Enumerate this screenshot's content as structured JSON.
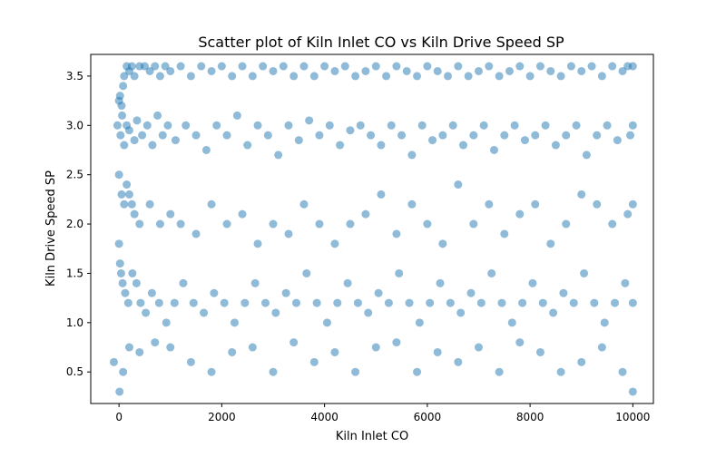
{
  "chart_data": {
    "type": "scatter",
    "title": "Scatter plot of Kiln Inlet CO vs Kiln Drive Speed SP",
    "xlabel": "Kiln Inlet CO",
    "ylabel": "Kiln Drive Speed SP",
    "xlim": [
      -550,
      10400
    ],
    "ylim": [
      0.18,
      3.72
    ],
    "xticks": [
      0,
      2000,
      4000,
      6000,
      8000,
      10000
    ],
    "xtick_labels": [
      "0",
      "2000",
      "4000",
      "6000",
      "8000",
      "10000"
    ],
    "yticks": [
      0.5,
      1.0,
      1.5,
      2.0,
      2.5,
      3.0,
      3.5
    ],
    "ytick_labels": [
      "0.5",
      "1.0",
      "1.5",
      "2.0",
      "2.5",
      "3.0",
      "3.5"
    ],
    "grid": false,
    "legend": "none",
    "marker_color": "#1f77b4",
    "marker_alpha": 0.5,
    "series": [
      {
        "x": [
          0,
          20,
          50,
          80,
          100,
          150,
          200,
          250,
          300,
          400,
          500,
          600,
          700,
          800,
          900,
          1000,
          1200,
          1400,
          1600,
          1800,
          2000,
          2200,
          2400,
          2600,
          2800,
          3000,
          3200,
          3400,
          3600,
          3800,
          4000,
          4200,
          4400,
          4600,
          4800,
          5000,
          5200,
          5400,
          5600,
          5800,
          6000,
          6200,
          6400,
          6600,
          6800,
          7000,
          7200,
          7400,
          7600,
          7800,
          8000,
          8200,
          8400,
          8600,
          8800,
          9000,
          9200,
          9400,
          9600,
          9800,
          9900,
          10000,
          -30,
          30,
          60,
          100,
          150,
          200,
          300,
          350,
          450,
          550,
          650,
          750,
          850,
          950,
          1100,
          1300,
          1500,
          1700,
          1900,
          2100,
          2300,
          2500,
          2700,
          2900,
          3100,
          3300,
          3500,
          3700,
          3900,
          4100,
          4300,
          4500,
          4700,
          4900,
          5100,
          5300,
          5500,
          5700,
          5900,
          6100,
          6300,
          6500,
          6700,
          6900,
          7100,
          7300,
          7500,
          7700,
          7900,
          8100,
          8300,
          8500,
          8700,
          8900,
          9100,
          9300,
          9500,
          9700,
          9950,
          10000,
          0,
          50,
          100,
          150,
          200,
          250,
          300,
          400,
          600,
          800,
          1000,
          1200,
          1500,
          1800,
          2100,
          2400,
          2700,
          3000,
          3300,
          3600,
          3900,
          4200,
          4500,
          4800,
          5100,
          5400,
          5700,
          6000,
          6300,
          6600,
          6900,
          7200,
          7500,
          7800,
          8100,
          8400,
          8700,
          9000,
          9300,
          9600,
          9900,
          10000,
          0,
          20,
          40,
          70,
          120,
          180,
          260,
          340,
          420,
          520,
          640,
          780,
          920,
          1080,
          1250,
          1450,
          1650,
          1850,
          2050,
          2250,
          2450,
          2650,
          2850,
          3050,
          3250,
          3450,
          3650,
          3850,
          4050,
          4250,
          4450,
          4650,
          4850,
          5050,
          5250,
          5450,
          5650,
          5850,
          6050,
          6250,
          6450,
          6650,
          6850,
          7050,
          7250,
          7450,
          7650,
          7850,
          8050,
          8250,
          8450,
          8650,
          8850,
          9050,
          9250,
          9450,
          9650,
          9850,
          10000,
          -100,
          10,
          80,
          200,
          400,
          700,
          1000,
          1400,
          1800,
          2200,
          2600,
          3000,
          3400,
          3800,
          4200,
          4600,
          5000,
          5400,
          5800,
          6200,
          6600,
          7000,
          7400,
          7800,
          8200,
          8600,
          9000,
          9400,
          9800,
          10000
        ],
        "y": [
          3.25,
          3.3,
          3.2,
          3.4,
          3.5,
          3.6,
          3.55,
          3.6,
          3.5,
          3.6,
          3.6,
          3.55,
          3.6,
          3.5,
          3.6,
          3.55,
          3.6,
          3.5,
          3.6,
          3.55,
          3.6,
          3.5,
          3.6,
          3.5,
          3.6,
          3.55,
          3.6,
          3.5,
          3.6,
          3.5,
          3.6,
          3.55,
          3.6,
          3.5,
          3.55,
          3.6,
          3.5,
          3.6,
          3.55,
          3.5,
          3.6,
          3.55,
          3.5,
          3.6,
          3.5,
          3.55,
          3.6,
          3.5,
          3.55,
          3.6,
          3.5,
          3.6,
          3.55,
          3.5,
          3.6,
          3.55,
          3.6,
          3.5,
          3.6,
          3.55,
          3.6,
          3.6,
          3.0,
          2.9,
          3.1,
          2.8,
          3.0,
          2.95,
          2.85,
          3.05,
          2.9,
          3.0,
          2.8,
          3.1,
          2.9,
          3.0,
          2.85,
          3.0,
          2.9,
          2.75,
          3.0,
          2.9,
          3.1,
          2.8,
          3.0,
          2.9,
          2.7,
          3.0,
          2.85,
          3.05,
          2.9,
          3.0,
          2.8,
          2.95,
          3.0,
          2.9,
          2.8,
          3.0,
          2.9,
          2.7,
          3.0,
          2.85,
          2.9,
          3.0,
          2.8,
          2.9,
          3.0,
          2.75,
          2.9,
          3.0,
          2.85,
          2.9,
          3.0,
          2.8,
          2.9,
          3.0,
          2.7,
          2.9,
          3.0,
          2.85,
          2.9,
          3.0,
          2.5,
          2.3,
          2.2,
          2.4,
          2.3,
          2.2,
          2.1,
          2.0,
          2.2,
          2.0,
          2.1,
          2.0,
          1.9,
          2.2,
          2.0,
          2.1,
          1.8,
          2.0,
          1.9,
          2.2,
          2.0,
          1.8,
          2.0,
          2.1,
          2.3,
          1.9,
          2.2,
          2.0,
          1.8,
          2.4,
          2.0,
          2.2,
          1.9,
          2.1,
          2.2,
          1.8,
          2.0,
          2.3,
          2.2,
          2.0,
          2.1,
          2.2,
          1.8,
          1.6,
          1.5,
          1.4,
          1.3,
          1.2,
          1.5,
          1.4,
          1.2,
          1.1,
          1.3,
          1.2,
          1.0,
          1.2,
          1.4,
          1.2,
          1.1,
          1.3,
          1.2,
          1.0,
          1.2,
          1.4,
          1.2,
          1.1,
          1.3,
          1.2,
          1.5,
          1.2,
          1.0,
          1.2,
          1.4,
          1.2,
          1.1,
          1.3,
          1.2,
          1.5,
          1.2,
          1.0,
          1.2,
          1.4,
          1.2,
          1.1,
          1.3,
          1.2,
          1.5,
          1.2,
          1.0,
          1.2,
          1.4,
          1.2,
          1.1,
          1.3,
          1.2,
          1.5,
          1.2,
          1.0,
          1.2,
          1.4,
          1.2,
          0.6,
          0.3,
          0.5,
          0.75,
          0.7,
          0.8,
          0.75,
          0.6,
          0.5,
          0.7,
          0.75,
          0.5,
          0.8,
          0.6,
          0.7,
          0.5,
          0.75,
          0.8,
          0.5,
          0.7,
          0.6,
          0.75,
          0.5,
          0.8,
          0.7,
          0.5,
          0.6,
          0.75,
          0.5,
          0.3
        ]
      }
    ]
  }
}
